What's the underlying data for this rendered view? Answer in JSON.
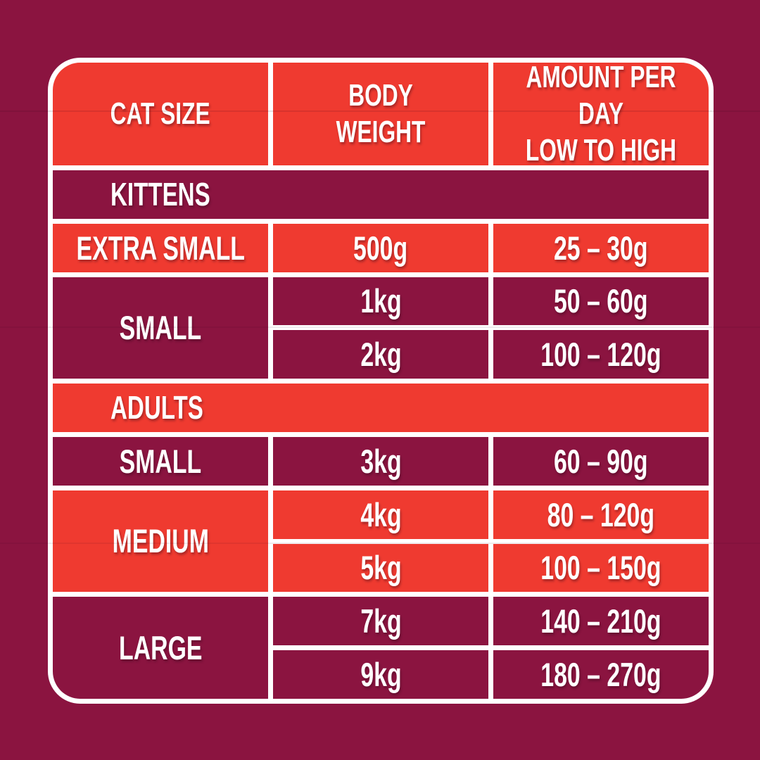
{
  "colors": {
    "page_background": "#8B1440",
    "cell_dark": "#8B1440",
    "cell_red": "#EF3A30",
    "divider_white": "#FFFFFF",
    "text": "#FFFFFF"
  },
  "table": {
    "headers": [
      {
        "line1": "CAT SIZE",
        "line2": ""
      },
      {
        "line1": "BODY WEIGHT",
        "line2": ""
      },
      {
        "line1": "AMOUNT PER DAY",
        "line2": "LOW TO HIGH"
      }
    ],
    "sections": [
      {
        "label": "KITTENS",
        "groups": [
          {
            "size": "EXTRA SMALL",
            "rows": [
              {
                "weight": "500g",
                "amount": "25 – 30g"
              }
            ]
          },
          {
            "size": "SMALL",
            "rows": [
              {
                "weight": "1kg",
                "amount": "50 – 60g"
              },
              {
                "weight": "2kg",
                "amount": "100 – 120g"
              }
            ]
          }
        ]
      },
      {
        "label": "ADULTS",
        "groups": [
          {
            "size": "SMALL",
            "rows": [
              {
                "weight": "3kg",
                "amount": "60 – 90g"
              }
            ]
          },
          {
            "size": "MEDIUM",
            "rows": [
              {
                "weight": "4kg",
                "amount": "80 – 120g"
              },
              {
                "weight": "5kg",
                "amount": "100 – 150g"
              }
            ]
          },
          {
            "size": "LARGE",
            "rows": [
              {
                "weight": "7kg",
                "amount": "140 – 210g"
              },
              {
                "weight": "9kg",
                "amount": "180 – 270g"
              }
            ]
          }
        ]
      }
    ]
  },
  "chart_data": {
    "type": "table",
    "columns": [
      "CAT SIZE",
      "BODY WEIGHT",
      "AMOUNT PER DAY LOW TO HIGH"
    ],
    "rows": [
      [
        "KITTENS",
        "",
        ""
      ],
      [
        "EXTRA SMALL",
        "500g",
        "25 – 30g"
      ],
      [
        "SMALL",
        "1kg",
        "50 – 60g"
      ],
      [
        "SMALL",
        "2kg",
        "100 – 120g"
      ],
      [
        "ADULTS",
        "",
        ""
      ],
      [
        "SMALL",
        "3kg",
        "60 – 90g"
      ],
      [
        "MEDIUM",
        "4kg",
        "80 – 120g"
      ],
      [
        "MEDIUM",
        "5kg",
        "100 – 150g"
      ],
      [
        "LARGE",
        "7kg",
        "140 – 210g"
      ],
      [
        "LARGE",
        "9kg",
        "180 – 270g"
      ]
    ]
  }
}
